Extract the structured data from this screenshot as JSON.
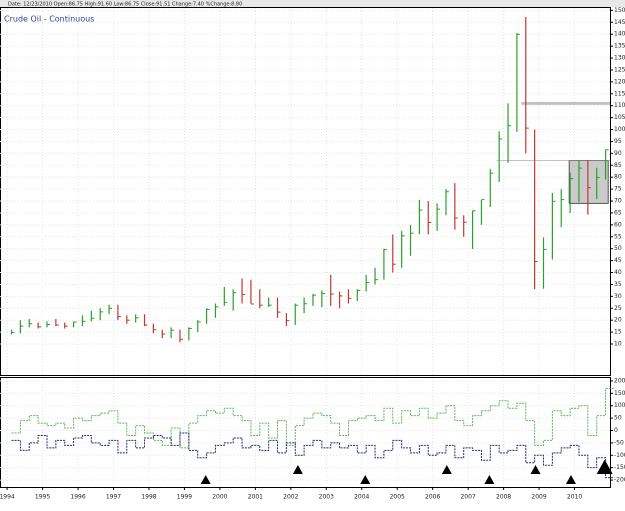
{
  "header": "Date: 12/23/2010  Open:86.75  High:91.60  Low:86.75  Close:91.51  Change:7.40  %Change:8.80",
  "chart_data": {
    "type": "hlc",
    "title": "Crude Oil - Continuous",
    "x": [
      1994.125,
      1994.375,
      1994.625,
      1994.875,
      1995.125,
      1995.375,
      1995.625,
      1995.875,
      1996.125,
      1996.375,
      1996.625,
      1996.875,
      1997.125,
      1997.375,
      1997.625,
      1997.875,
      1998.125,
      1998.375,
      1998.625,
      1998.875,
      1999.125,
      1999.375,
      1999.625,
      1999.875,
      2000.125,
      2000.375,
      2000.625,
      2000.875,
      2001.125,
      2001.375,
      2001.625,
      2001.875,
      2002.125,
      2002.375,
      2002.625,
      2002.875,
      2003.125,
      2003.375,
      2003.625,
      2003.875,
      2004.125,
      2004.375,
      2004.625,
      2004.875,
      2005.125,
      2005.375,
      2005.625,
      2005.875,
      2006.125,
      2006.375,
      2006.625,
      2006.875,
      2007.125,
      2007.375,
      2007.625,
      2007.875,
      2008.125,
      2008.375,
      2008.625,
      2008.875,
      2009.125,
      2009.375,
      2009.625,
      2009.875,
      2010.125,
      2010.375,
      2010.625,
      2010.875
    ],
    "high": [
      16,
      20,
      20.5,
      19,
      19.5,
      20.5,
      19,
      19.5,
      22,
      24,
      25,
      26.5,
      26.5,
      22,
      22.5,
      22.5,
      18.5,
      16,
      17,
      16,
      17,
      20,
      25,
      27,
      34,
      33,
      37.5,
      37,
      33,
      29.5,
      29.5,
      23,
      27,
      29.5,
      31,
      32.5,
      39,
      32,
      33,
      33,
      39,
      42,
      50,
      56,
      57.5,
      60,
      70.5,
      70,
      69,
      75,
      77.5,
      64,
      66,
      70.5,
      83.5,
      99.3,
      111,
      140.5,
      147.3,
      100,
      54.7,
      73.4,
      75,
      82,
      87,
      87.2,
      84,
      91.6
    ],
    "low": [
      14,
      14.5,
      17,
      16.5,
      17,
      17.5,
      16.5,
      17,
      17.5,
      19.5,
      20,
      22.5,
      20,
      18.5,
      19,
      17.5,
      14.5,
      12.5,
      12.5,
      10.7,
      11.5,
      15,
      18.5,
      21,
      26,
      24,
      27,
      27,
      25,
      25.5,
      21,
      17.5,
      18,
      23,
      26,
      25.5,
      26,
      25,
      27,
      28,
      32,
      35,
      37,
      40,
      42,
      47,
      56,
      56,
      57.5,
      64,
      58,
      55,
      49.9,
      60,
      67.5,
      78,
      86,
      99,
      90,
      33,
      33.2,
      45.5,
      59,
      65,
      69.5,
      64.3,
      70.8,
      79
    ],
    "close": [
      14.8,
      17.5,
      18.5,
      17.2,
      18.2,
      18,
      17.5,
      19.2,
      19.5,
      20.8,
      23.5,
      25,
      21.5,
      20,
      21,
      18,
      16,
      14.2,
      15.8,
      12,
      16.5,
      19.3,
      24.5,
      25.6,
      27.5,
      31.5,
      30.8,
      26.8,
      26.3,
      26.3,
      23.4,
      19.8,
      26.3,
      26.9,
      30.5,
      31.2,
      31,
      30.2,
      29.2,
      32.5,
      35.8,
      37,
      49.6,
      43.5,
      55.4,
      56.5,
      66.2,
      61,
      66.6,
      73.9,
      62.9,
      61.1,
      65.9,
      70.7,
      81.7,
      96,
      101.6,
      140,
      100.6,
      44.6,
      49.7,
      69.9,
      70.6,
      79.4,
      83.8,
      75.6,
      79.9,
      91.5
    ],
    "up_color": "#2ca02c",
    "down_color": "#c0392b",
    "xlim": [
      1993.8,
      2011.0
    ],
    "xticks": [
      1994,
      1995,
      1996,
      1997,
      1998,
      1999,
      2000,
      2001,
      2002,
      2003,
      2004,
      2005,
      2006,
      2007,
      2008,
      2009,
      2010
    ],
    "ylim": [
      -3,
      151
    ],
    "yticks": [
      10,
      15,
      20,
      25,
      30,
      35,
      40,
      45,
      50,
      55,
      60,
      65,
      70,
      75,
      80,
      85,
      90,
      95,
      100,
      105,
      110,
      115,
      120,
      125,
      130,
      135,
      140,
      145,
      150
    ],
    "grid": true,
    "box": {
      "xlim": [
        2009.85,
        2010.95
      ],
      "ylim": [
        69,
        87
      ]
    },
    "hlines": [
      {
        "y": 87,
        "x": [
          2007.8,
          2011.0
        ]
      },
      {
        "y": 111,
        "x": [
          2008.5,
          2011.0
        ]
      }
    ],
    "indicator": {
      "ylim": [
        -228,
        212
      ],
      "yticks": [
        200,
        150,
        100,
        50,
        0,
        -50,
        -100,
        -150,
        -200
      ],
      "series": [
        {
          "color": "#5cb85c",
          "values": [
            -10,
            40,
            60,
            30,
            20,
            30,
            10,
            50,
            40,
            60,
            70,
            80,
            30,
            -20,
            20,
            -10,
            -40,
            -60,
            10,
            -70,
            30,
            60,
            80,
            70,
            90,
            60,
            40,
            -20,
            30,
            -30,
            40,
            -60,
            20,
            50,
            70,
            60,
            30,
            -20,
            40,
            50,
            60,
            40,
            90,
            30,
            80,
            60,
            90,
            50,
            70,
            100,
            40,
            20,
            60,
            80,
            100,
            120,
            90,
            110,
            40,
            -60,
            -40,
            80,
            60,
            90,
            100,
            -20,
            60,
            170
          ]
        },
        {
          "color": "#1f2a7a",
          "values": [
            -40,
            -80,
            -50,
            -20,
            -70,
            -40,
            -60,
            -30,
            -20,
            -50,
            -60,
            -40,
            -90,
            -40,
            -70,
            -30,
            -20,
            -30,
            -60,
            -10,
            -80,
            -110,
            -90,
            -60,
            -50,
            -30,
            -70,
            -60,
            -80,
            -40,
            -90,
            -50,
            -100,
            -60,
            -40,
            -70,
            -50,
            -70,
            -60,
            -90,
            -60,
            -110,
            -80,
            -40,
            -70,
            -90,
            -60,
            -100,
            -90,
            -60,
            -110,
            -70,
            -80,
            -120,
            -60,
            -90,
            -80,
            -60,
            -130,
            -100,
            -140,
            -90,
            -70,
            -60,
            -100,
            -150,
            -110,
            -190
          ]
        }
      ],
      "signals": [
        1999.6,
        2002.2,
        2004.1,
        2006.4,
        2007.6,
        2008.9,
        2009.9,
        2010.85
      ]
    }
  }
}
